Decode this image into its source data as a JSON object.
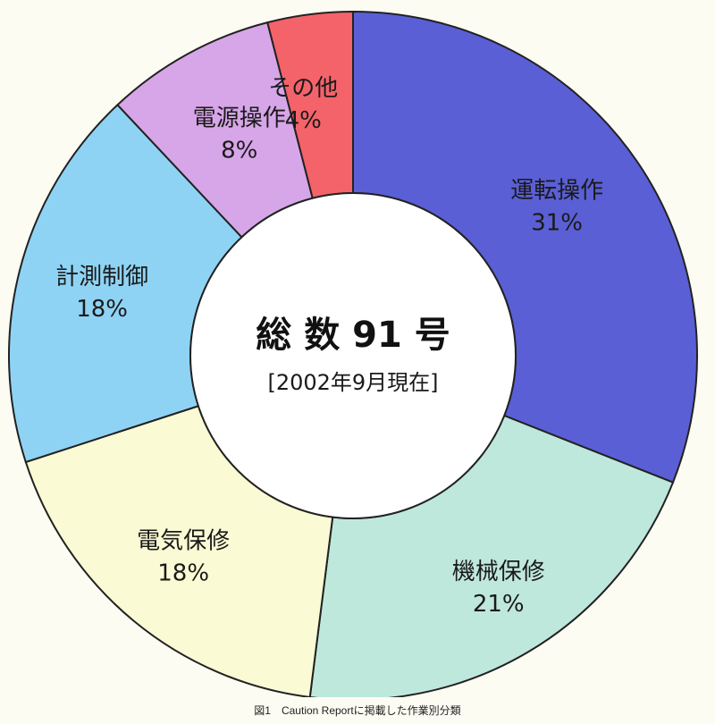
{
  "chart_data": {
    "type": "pie",
    "donut": true,
    "categories": [
      "運転操作",
      "機械保修",
      "電気保修",
      "計測制御",
      "電源操作",
      "その他"
    ],
    "values": [
      31,
      21,
      18,
      18,
      8,
      4
    ],
    "value_labels": [
      "31%",
      "21%",
      "18%",
      "18%",
      "8%",
      "4%"
    ],
    "colors": [
      "#5a5fd6",
      "#bfe8dd",
      "#fafad4",
      "#8fd3f4",
      "#d7a6e8",
      "#f4636a"
    ],
    "center_title": "総 数 91 号",
    "center_subtitle": "[2002年9月現在]"
  },
  "caption": "図1　Caution Reportに掲載した作業別分類"
}
